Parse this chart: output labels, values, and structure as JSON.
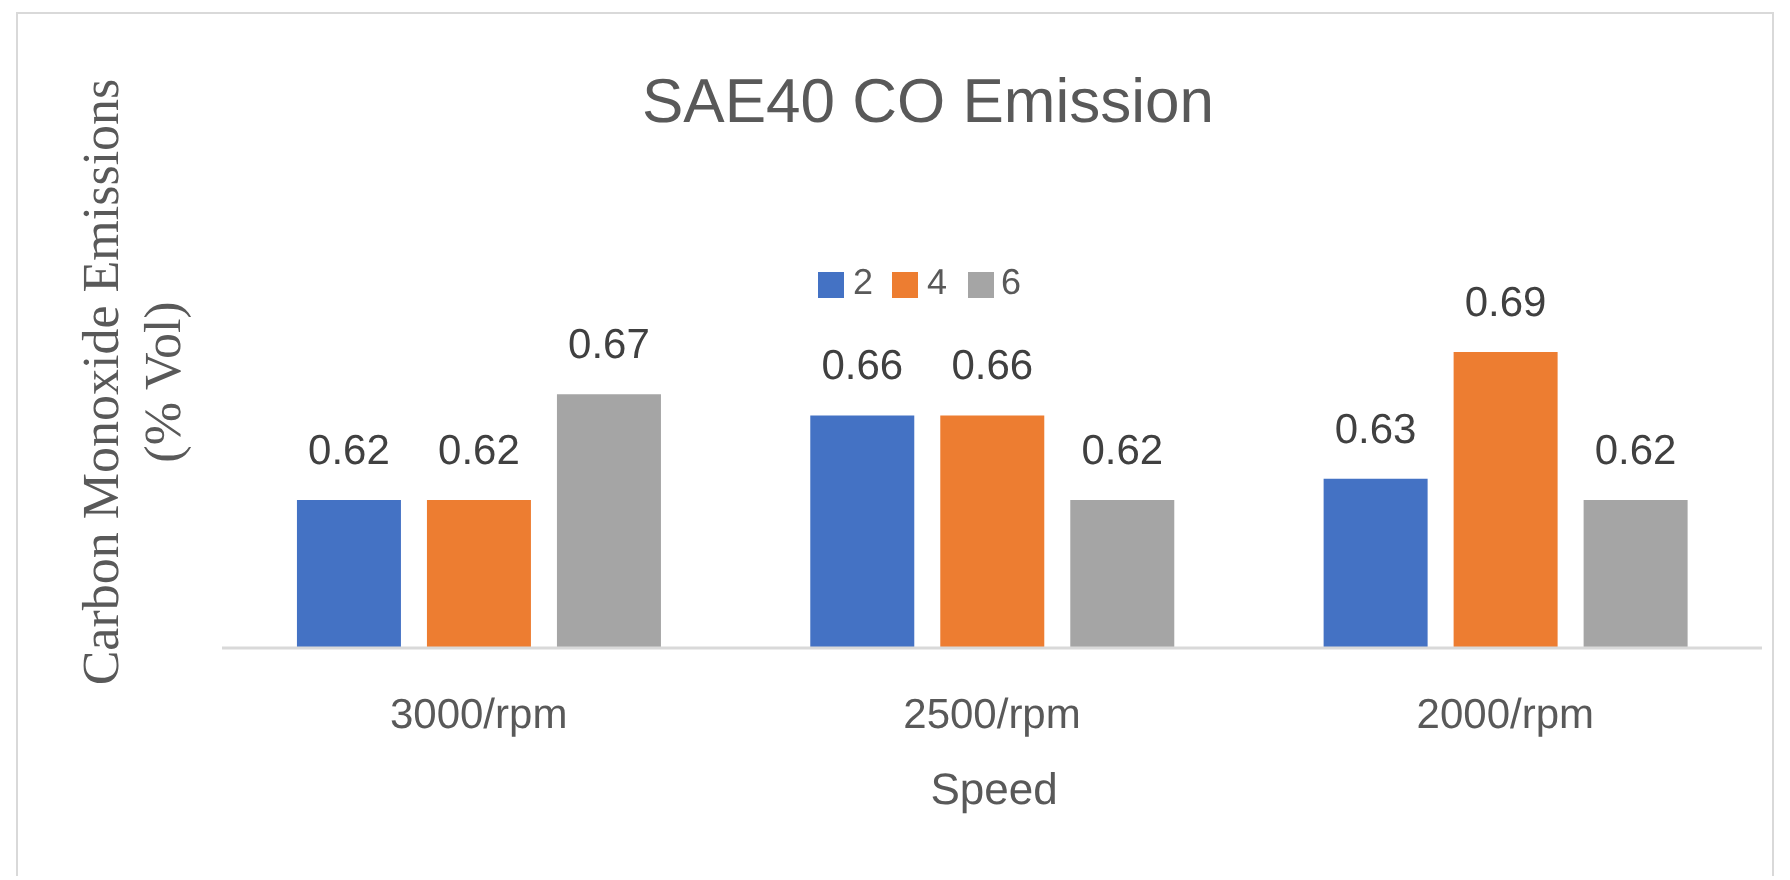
{
  "chart_data": {
    "type": "bar",
    "title": "SAE40 CO Emission",
    "xlabel": "Speed",
    "ylabel": "Carbon Monoxide Emissions (% Vol)",
    "categories": [
      "3000/rpm",
      "2500/rpm",
      "2000/rpm"
    ],
    "series": [
      {
        "name": "2",
        "color": "#4472c4",
        "values": [
          0.62,
          0.66,
          0.63
        ]
      },
      {
        "name": "4",
        "color": "#ed7d31",
        "values": [
          0.62,
          0.66,
          0.69
        ]
      },
      {
        "name": "6",
        "color": "#a5a5a5",
        "values": [
          0.67,
          0.62,
          0.62
        ]
      }
    ],
    "ylim": [
      0.55,
      0.69
    ],
    "tick_labels": "x",
    "data_labels": true,
    "legend": "top"
  }
}
